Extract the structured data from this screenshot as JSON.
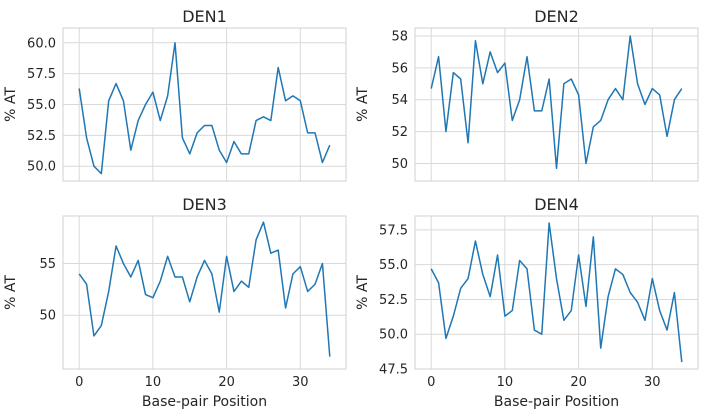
{
  "figure": {
    "shared_xlabel": "Base-pair Position",
    "ylabel": "% AT"
  },
  "chart_data": [
    {
      "type": "line",
      "title": "DEN1",
      "xlabel": "",
      "ylabel": "% AT",
      "xlim": [
        -2.2,
        36.2
      ],
      "ylim": [
        48.8,
        61.2
      ],
      "xticks": [
        0,
        10,
        20,
        30
      ],
      "xticklabels": [],
      "yticks": [
        50.0,
        52.5,
        55.0,
        57.5,
        60.0
      ],
      "yticklabels": [
        "50.0",
        "52.5",
        "55.0",
        "57.5",
        "60.0"
      ],
      "grid": true,
      "color": "#1f77b4",
      "x": [
        0,
        1,
        2,
        3,
        4,
        5,
        6,
        7,
        8,
        9,
        10,
        11,
        12,
        13,
        14,
        15,
        16,
        17,
        18,
        19,
        20,
        21,
        22,
        23,
        24,
        25,
        26,
        27,
        28,
        29,
        30,
        31,
        32,
        33,
        34
      ],
      "values": [
        56.3,
        52.3,
        50.0,
        49.4,
        55.3,
        56.7,
        55.3,
        51.3,
        53.7,
        55.0,
        56.0,
        53.7,
        55.7,
        60.0,
        52.3,
        51.0,
        52.7,
        53.3,
        53.3,
        51.3,
        50.3,
        52.0,
        51.0,
        51.0,
        53.7,
        54.0,
        53.7,
        58.0,
        55.3,
        55.7,
        55.3,
        52.7,
        52.7,
        50.3,
        51.7
      ]
    },
    {
      "type": "line",
      "title": "DEN2",
      "xlabel": "",
      "ylabel": "% AT",
      "xlim": [
        -2.2,
        36.2
      ],
      "ylim": [
        48.9,
        58.5
      ],
      "xticks": [
        0,
        10,
        20,
        30
      ],
      "xticklabels": [],
      "yticks": [
        50,
        52,
        54,
        56,
        58
      ],
      "yticklabels": [
        "50",
        "52",
        "54",
        "56",
        "58"
      ],
      "grid": true,
      "color": "#1f77b4",
      "x": [
        0,
        1,
        2,
        3,
        4,
        5,
        6,
        7,
        8,
        9,
        10,
        11,
        12,
        13,
        14,
        15,
        16,
        17,
        18,
        19,
        20,
        21,
        22,
        23,
        24,
        25,
        26,
        27,
        28,
        29,
        30,
        31,
        32,
        33,
        34
      ],
      "values": [
        54.7,
        56.7,
        52.0,
        55.7,
        55.3,
        51.3,
        57.7,
        55.0,
        57.0,
        55.7,
        56.3,
        52.7,
        54.0,
        56.7,
        53.3,
        53.3,
        55.3,
        49.7,
        55.0,
        55.3,
        54.3,
        50.0,
        52.3,
        52.7,
        54.0,
        54.7,
        54.0,
        58.0,
        55.0,
        53.7,
        54.7,
        54.3,
        51.7,
        54.0,
        54.7
      ]
    },
    {
      "type": "line",
      "title": "DEN3",
      "xlabel": "Base-pair Position",
      "ylabel": "% AT",
      "xlim": [
        -2.2,
        36.2
      ],
      "ylim": [
        44.8,
        59.6
      ],
      "xticks": [
        0,
        10,
        20,
        30
      ],
      "xticklabels": [
        "0",
        "10",
        "20",
        "30"
      ],
      "yticks": [
        50,
        55
      ],
      "yticklabels": [
        "50",
        "55"
      ],
      "grid": true,
      "color": "#1f77b4",
      "x": [
        0,
        1,
        2,
        3,
        4,
        5,
        6,
        7,
        8,
        9,
        10,
        11,
        12,
        13,
        14,
        15,
        16,
        17,
        18,
        19,
        20,
        21,
        22,
        23,
        24,
        25,
        26,
        27,
        28,
        29,
        30,
        31,
        32,
        33,
        34
      ],
      "values": [
        54.0,
        53.0,
        48.0,
        49.0,
        52.3,
        56.7,
        55.0,
        53.7,
        55.3,
        52.0,
        51.7,
        53.3,
        55.7,
        53.7,
        53.7,
        51.3,
        53.7,
        55.3,
        54.0,
        50.3,
        55.7,
        52.3,
        53.3,
        52.7,
        57.3,
        59.0,
        56.0,
        56.3,
        50.7,
        54.0,
        54.7,
        52.3,
        53.0,
        55.0,
        46.0
      ]
    },
    {
      "type": "line",
      "title": "DEN4",
      "xlabel": "Base-pair Position",
      "ylabel": "% AT",
      "xlim": [
        -2.2,
        36.2
      ],
      "ylim": [
        47.5,
        58.5
      ],
      "xticks": [
        0,
        10,
        20,
        30
      ],
      "xticklabels": [
        "0",
        "10",
        "20",
        "30"
      ],
      "yticks": [
        47.5,
        50.0,
        52.5,
        55.0,
        57.5
      ],
      "yticklabels": [
        "47.5",
        "50.0",
        "52.5",
        "55.0",
        "57.5"
      ],
      "grid": true,
      "color": "#1f77b4",
      "x": [
        0,
        1,
        2,
        3,
        4,
        5,
        6,
        7,
        8,
        9,
        10,
        11,
        12,
        13,
        14,
        15,
        16,
        17,
        18,
        19,
        20,
        21,
        22,
        23,
        24,
        25,
        26,
        27,
        28,
        29,
        30,
        31,
        32,
        33,
        34
      ],
      "values": [
        54.7,
        53.7,
        49.7,
        51.3,
        53.3,
        54.0,
        56.7,
        54.3,
        52.7,
        55.7,
        51.3,
        51.7,
        55.3,
        54.7,
        50.3,
        50.0,
        58.0,
        54.0,
        51.0,
        51.7,
        55.7,
        52.0,
        57.0,
        49.0,
        52.7,
        54.7,
        54.3,
        53.0,
        52.3,
        51.0,
        54.0,
        51.7,
        50.3,
        53.0,
        48.0
      ]
    }
  ]
}
